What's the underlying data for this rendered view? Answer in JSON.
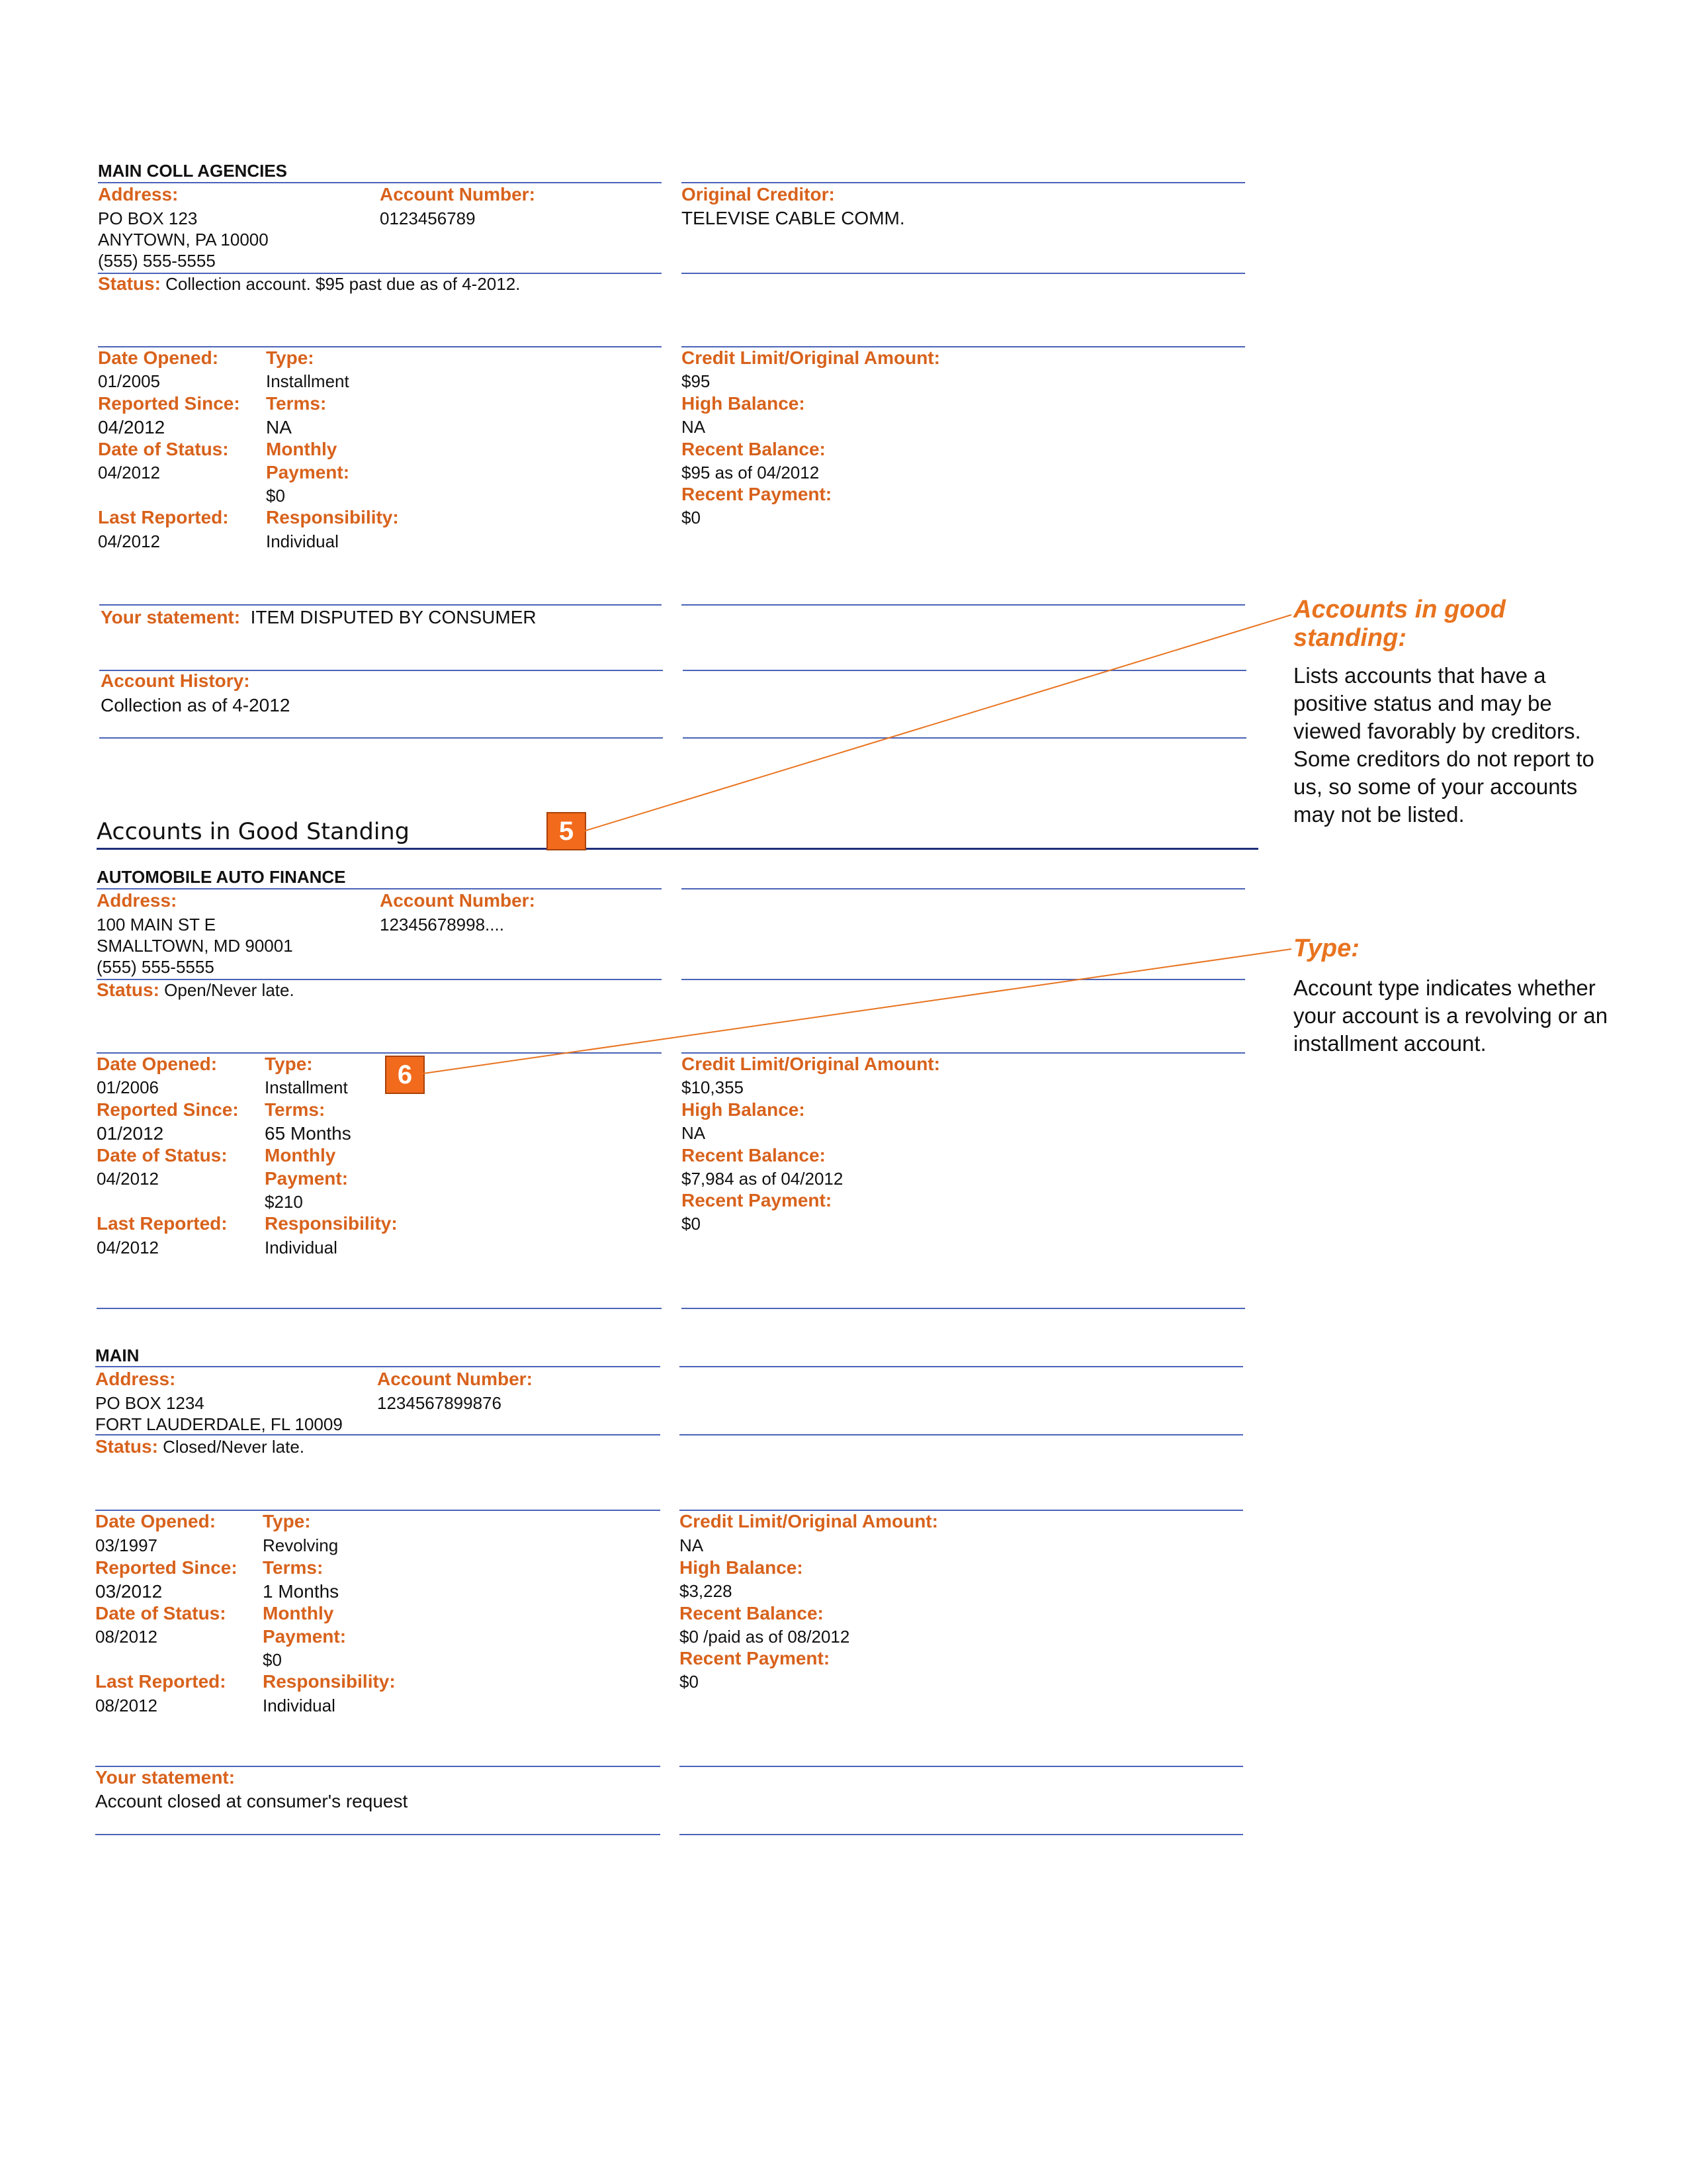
{
  "accounts": [
    {
      "name": "MAIN COLL AGENCIES",
      "address_label": "Address:",
      "address_lines": [
        "PO BOX 123",
        "ANYTOWN, PA  10000",
        "(555) 555-5555"
      ],
      "account_number_label": "Account Number:",
      "account_number": "0123456789",
      "original_creditor_label": "Original Creditor:",
      "original_creditor": "TELEVISE  CABLE COMM.",
      "status_label": "Status:",
      "status": "Collection account. $95 past due as of 4-2012.",
      "date_opened_label": "Date Opened:",
      "date_opened": "01/2005",
      "reported_since_label": "Reported Since:",
      "reported_since": "04/2012",
      "date_of_status_label": "Date of Status:",
      "date_of_status": "04/2012",
      "last_reported_label": "Last Reported:",
      "last_reported": "04/2012",
      "type_label": "Type:",
      "type": "Installment",
      "terms_label": "Terms:",
      "terms": "NA",
      "monthly_label": "Monthly",
      "payment_label": "Payment:",
      "monthly_payment": "$0",
      "responsibility_label": "Responsibility:",
      "responsibility": "Individual",
      "credit_limit_label": "Credit Limit/Original Amount:",
      "credit_limit": "$95",
      "high_balance_label": "High Balance:",
      "high_balance": "NA",
      "recent_balance_label": "Recent Balance:",
      "recent_balance": "$95 as of 04/2012",
      "recent_payment_label": "Recent Payment:",
      "recent_payment": "$0",
      "statement_label": "Your statement:",
      "statement": "ITEM DISPUTED BY CONSUMER",
      "history_label": "Account History:",
      "history": "Collection as of 4-2012"
    },
    {
      "name": "AUTOMOBILE AUTO FINANCE",
      "address_label": "Address:",
      "address_lines": [
        "100 MAIN ST E",
        "SMALLTOWN, MD  90001",
        "(555) 555-5555"
      ],
      "account_number_label": "Account Number:",
      "account_number": "12345678998....",
      "status_label": "Status:",
      "status": "Open/Never late.",
      "date_opened_label": "Date Opened:",
      "date_opened": "01/2006",
      "reported_since_label": "Reported Since:",
      "reported_since": "01/2012",
      "date_of_status_label": "Date of Status:",
      "date_of_status": "04/2012",
      "last_reported_label": "Last Reported:",
      "last_reported": "04/2012",
      "type_label": "Type:",
      "type": "Installment",
      "terms_label": "Terms:",
      "terms": "65 Months",
      "monthly_label": "Monthly",
      "payment_label": "Payment:",
      "monthly_payment": "$210",
      "responsibility_label": "Responsibility:",
      "responsibility": "Individual",
      "credit_limit_label": "Credit Limit/Original Amount:",
      "credit_limit": "$10,355",
      "high_balance_label": "High Balance:",
      "high_balance": "NA",
      "recent_balance_label": "Recent Balance:",
      "recent_balance": "$7,984 as of 04/2012",
      "recent_payment_label": "Recent Payment:",
      "recent_payment": "$0"
    },
    {
      "name": "MAIN",
      "address_label": "Address:",
      "address_lines": [
        "PO BOX 1234",
        "FORT LAUDERDALE, FL  10009"
      ],
      "account_number_label": "Account Number:",
      "account_number": "1234567899876",
      "status_label": "Status:",
      "status": "Closed/Never late.",
      "date_opened_label": "Date Opened:",
      "date_opened": "03/1997",
      "reported_since_label": "Reported Since:",
      "reported_since": "03/2012",
      "date_of_status_label": "Date of Status:",
      "date_of_status": "08/2012",
      "last_reported_label": "Last Reported:",
      "last_reported": "08/2012",
      "type_label": "Type:",
      "type": "Revolving",
      "terms_label": "Terms:",
      "terms": "1 Months",
      "monthly_label": "Monthly",
      "payment_label": "Payment:",
      "monthly_payment": "$0",
      "responsibility_label": "Responsibility:",
      "responsibility": "Individual",
      "credit_limit_label": "Credit Limit/Original Amount:",
      "credit_limit": "NA",
      "high_balance_label": "High Balance:",
      "high_balance": "$3,228",
      "recent_balance_label": "Recent Balance:",
      "recent_balance": "$0 /paid as of 08/2012",
      "recent_payment_label": "Recent Payment:",
      "recent_payment": "$0",
      "statement_label": "Your statement:",
      "statement": "Account closed at consumer's request"
    }
  ],
  "section": {
    "title": "Accounts in Good Standing"
  },
  "badges": {
    "five": "5",
    "six": "6"
  },
  "callouts": {
    "good_standing": {
      "title": "Accounts in good standing:",
      "body": "Lists accounts that have a positive status and may be viewed favorably by creditors.  Some creditors do not report to us, so some of your accounts may not be listed."
    },
    "type": {
      "title": "Type:",
      "body": "Account type indicates whether your account is a revolving or an installment account."
    }
  },
  "colors": {
    "label_orange": "#d8621c",
    "callout_orange": "#e8731f",
    "badge_orange": "#f26a1b",
    "rule_blue": "#4a63b8",
    "section_rule_navy": "#1f2f7a"
  }
}
